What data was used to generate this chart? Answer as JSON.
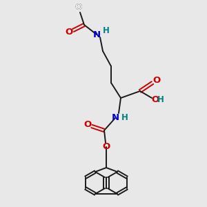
{
  "bg_color": "#e8e8e8",
  "bond_color": "#1a1a1a",
  "N_color": "#0000cc",
  "O_color": "#cc0000",
  "H_color": "#008080",
  "fig_size": [
    3.0,
    3.0
  ],
  "dpi": 100,
  "xlim": [
    0,
    300
  ],
  "ylim": [
    0,
    300
  ],
  "alpha_x": 175,
  "alpha_y": 158,
  "lw": 1.4,
  "fs": 8.5
}
